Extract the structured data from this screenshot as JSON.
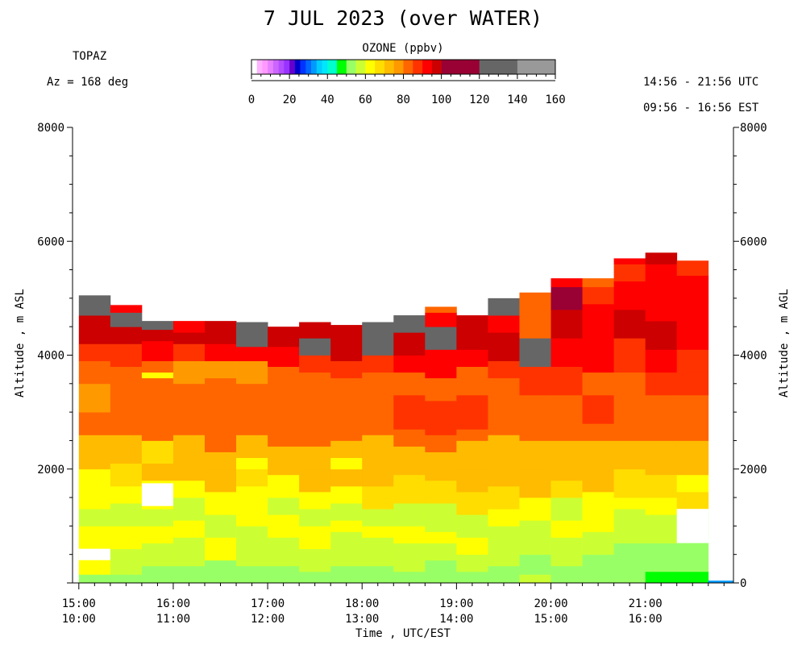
{
  "header": {
    "title": "7 JUL 2023 (over WATER)",
    "site": "TOPAZ",
    "azimuth": "Az = 168 deg",
    "utc_range": "14:56 - 21:56 UTC",
    "est_range": "09:56 - 16:56 EST"
  },
  "colorbar": {
    "label": "OZONE (ppbv)",
    "ticks": [
      "0",
      "20",
      "40",
      "60",
      "80",
      "100",
      "120",
      "140",
      "160"
    ],
    "colors": [
      "#ffffff",
      "#ffb3ff",
      "#ff99ff",
      "#e680ff",
      "#cc66ff",
      "#b34dff",
      "#9933ff",
      "#6600cc",
      "#0000cc",
      "#0033ff",
      "#0066ff",
      "#0099ff",
      "#00ccff",
      "#00e6ff",
      "#00ffcc",
      "#00ff00",
      "#99ff66",
      "#ccff33",
      "#ffff00",
      "#ffdd00",
      "#ffbb00",
      "#ff9900",
      "#ff6600",
      "#ff3300",
      "#ff0000",
      "#cc0000",
      "#990033",
      "#666666",
      "#999999",
      "#cccccc"
    ]
  },
  "chart_data": {
    "type": "heatmap",
    "title": "7 JUL 2023 (over WATER)",
    "variable": "OZONE (ppbv)",
    "xlabel": "Time , UTC/EST",
    "ylabel_left": "Altitude , m ASL",
    "ylabel_right": "Altitude , m AGL",
    "x_ticks_utc": [
      "15:00",
      "16:00",
      "17:00",
      "18:00",
      "19:00",
      "20:00",
      "21:00"
    ],
    "x_ticks_est": [
      "10:00",
      "11:00",
      "12:00",
      "13:00",
      "14:00",
      "15:00",
      "16:00"
    ],
    "y_ticks_left": [
      "8000",
      "6000",
      "4000",
      "2000"
    ],
    "y_ticks_right": [
      "8000",
      "6000",
      "4000",
      "2000",
      "0"
    ],
    "ylim": [
      0,
      8000
    ],
    "x_range_utc": [
      "14:56",
      "21:56"
    ],
    "profiles": [
      {
        "time": "15:00",
        "top": 5050,
        "gap": [
          400,
          600
        ],
        "layers": [
          [
            0,
            50
          ],
          [
            150,
            62
          ],
          [
            1000,
            55
          ],
          [
            1300,
            62
          ],
          [
            2000,
            72
          ],
          [
            2600,
            80
          ],
          [
            3000,
            78
          ],
          [
            3500,
            82
          ],
          [
            3900,
            88
          ],
          [
            4200,
            98
          ],
          [
            4700,
            104
          ],
          [
            4900,
            106
          ]
        ]
      },
      {
        "time": "15:20",
        "top": 4880,
        "layers": [
          [
            0,
            50
          ],
          [
            150,
            55
          ],
          [
            600,
            62
          ],
          [
            1000,
            55
          ],
          [
            1400,
            62
          ],
          [
            1700,
            68
          ],
          [
            2100,
            70
          ],
          [
            2600,
            80
          ],
          [
            3300,
            82
          ],
          [
            3800,
            88
          ],
          [
            4200,
            98
          ],
          [
            4500,
            102
          ],
          [
            4750,
            94
          ]
        ]
      },
      {
        "time": "15:40",
        "top": 4600,
        "gap": [
          1350,
          1750
        ],
        "layers": [
          [
            0,
            50
          ],
          [
            300,
            55
          ],
          [
            700,
            62
          ],
          [
            1000,
            55
          ],
          [
            1300,
            62
          ],
          [
            1800,
            70
          ],
          [
            2100,
            68
          ],
          [
            2500,
            80
          ],
          [
            3600,
            62
          ],
          [
            3700,
            82
          ],
          [
            3900,
            94
          ],
          [
            4250,
            98
          ],
          [
            4450,
            104
          ]
        ]
      },
      {
        "time": "16:00",
        "top": 4600,
        "layers": [
          [
            0,
            52
          ],
          [
            300,
            55
          ],
          [
            800,
            62
          ],
          [
            1100,
            55
          ],
          [
            1500,
            62
          ],
          [
            1800,
            70
          ],
          [
            2200,
            70
          ],
          [
            2600,
            80
          ],
          [
            3100,
            82
          ],
          [
            3500,
            78
          ],
          [
            3900,
            88
          ],
          [
            4200,
            96
          ],
          [
            4400,
            94
          ]
        ]
      },
      {
        "time": "16:20",
        "top": 4600,
        "layers": [
          [
            0,
            52
          ],
          [
            400,
            60
          ],
          [
            800,
            55
          ],
          [
            1200,
            62
          ],
          [
            1600,
            72
          ],
          [
            2000,
            70
          ],
          [
            2300,
            80
          ],
          [
            3100,
            82
          ],
          [
            3600,
            78
          ],
          [
            3900,
            90
          ],
          [
            4200,
            98
          ],
          [
            4450,
            96
          ]
        ]
      },
      {
        "time": "16:40",
        "top": 4580,
        "layers": [
          [
            0,
            50
          ],
          [
            300,
            58
          ],
          [
            700,
            55
          ],
          [
            1000,
            60
          ],
          [
            1300,
            62
          ],
          [
            1700,
            68
          ],
          [
            2000,
            60
          ],
          [
            2200,
            70
          ],
          [
            2600,
            80
          ],
          [
            3000,
            82
          ],
          [
            3500,
            78
          ],
          [
            3900,
            92
          ],
          [
            4150,
            104
          ]
        ]
      },
      {
        "time": "17:00",
        "top": 4500,
        "layers": [
          [
            0,
            50
          ],
          [
            300,
            55
          ],
          [
            800,
            62
          ],
          [
            1200,
            55
          ],
          [
            1500,
            62
          ],
          [
            1900,
            70
          ],
          [
            2400,
            80
          ],
          [
            3100,
            82
          ],
          [
            3500,
            80
          ],
          [
            3800,
            92
          ],
          [
            4150,
            98
          ],
          [
            4350,
            96
          ]
        ]
      },
      {
        "time": "17:20",
        "top": 4580,
        "layers": [
          [
            0,
            50
          ],
          [
            200,
            55
          ],
          [
            600,
            62
          ],
          [
            1000,
            55
          ],
          [
            1300,
            62
          ],
          [
            1600,
            72
          ],
          [
            2000,
            70
          ],
          [
            2400,
            80
          ],
          [
            3200,
            82
          ],
          [
            3700,
            88
          ],
          [
            4000,
            104
          ],
          [
            4300,
            96
          ]
        ]
      },
      {
        "time": "17:40",
        "top": 4530,
        "layers": [
          [
            0,
            50
          ],
          [
            300,
            55
          ],
          [
            900,
            62
          ],
          [
            1100,
            55
          ],
          [
            1400,
            62
          ],
          [
            1700,
            70
          ],
          [
            2000,
            62
          ],
          [
            2200,
            70
          ],
          [
            2500,
            80
          ],
          [
            3200,
            82
          ],
          [
            3600,
            88
          ],
          [
            3900,
            98
          ],
          [
            4250,
            98
          ]
        ]
      },
      {
        "time": "18:00",
        "top": 4580,
        "layers": [
          [
            0,
            50
          ],
          [
            300,
            55
          ],
          [
            800,
            62
          ],
          [
            1000,
            55
          ],
          [
            1300,
            66
          ],
          [
            1700,
            70
          ],
          [
            2200,
            72
          ],
          [
            2600,
            80
          ],
          [
            3100,
            84
          ],
          [
            3700,
            88
          ],
          [
            4000,
            104
          ],
          [
            4200,
            114
          ],
          [
            4280,
            102
          ]
        ]
      },
      {
        "time": "18:20",
        "top": 4700,
        "layers": [
          [
            0,
            50
          ],
          [
            200,
            55
          ],
          [
            700,
            60
          ],
          [
            1000,
            55
          ],
          [
            1400,
            66
          ],
          [
            1900,
            72
          ],
          [
            2400,
            80
          ],
          [
            2700,
            86
          ],
          [
            3300,
            82
          ],
          [
            3700,
            90
          ],
          [
            4000,
            98
          ],
          [
            4400,
            104
          ]
        ]
      },
      {
        "time": "18:40",
        "top": 4850,
        "layers": [
          [
            0,
            50
          ],
          [
            400,
            55
          ],
          [
            700,
            62
          ],
          [
            900,
            55
          ],
          [
            1400,
            66
          ],
          [
            1800,
            74
          ],
          [
            2300,
            80
          ],
          [
            2600,
            86
          ],
          [
            3200,
            82
          ],
          [
            3600,
            92
          ],
          [
            4100,
            112
          ],
          [
            4200,
            104
          ],
          [
            4500,
            94
          ],
          [
            4750,
            84
          ]
        ]
      },
      {
        "time": "19:00",
        "top": 4700,
        "layers": [
          [
            0,
            50
          ],
          [
            200,
            55
          ],
          [
            500,
            60
          ],
          [
            800,
            55
          ],
          [
            1200,
            66
          ],
          [
            1600,
            70
          ],
          [
            2000,
            72
          ],
          [
            2500,
            80
          ],
          [
            2700,
            86
          ],
          [
            3300,
            84
          ],
          [
            3800,
            92
          ],
          [
            4100,
            98
          ],
          [
            4400,
            96
          ]
        ]
      },
      {
        "time": "19:20",
        "top": 5000,
        "layers": [
          [
            0,
            50
          ],
          [
            300,
            55
          ],
          [
            1000,
            62
          ],
          [
            1300,
            66
          ],
          [
            1700,
            70
          ],
          [
            2200,
            72
          ],
          [
            2600,
            80
          ],
          [
            3200,
            82
          ],
          [
            3600,
            88
          ],
          [
            3900,
            96
          ],
          [
            4400,
            92
          ],
          [
            4700,
            104
          ]
        ]
      },
      {
        "time": "19:40",
        "top": 5100,
        "layers": [
          [
            0,
            58
          ],
          [
            150,
            52
          ],
          [
            500,
            55
          ],
          [
            1100,
            64
          ],
          [
            1500,
            70
          ],
          [
            2000,
            72
          ],
          [
            2500,
            82
          ],
          [
            2900,
            80
          ],
          [
            3300,
            86
          ],
          [
            3800,
            104
          ],
          [
            4300,
            82
          ],
          [
            4700,
            84
          ]
        ]
      },
      {
        "time": "20:00",
        "top": 5350,
        "layers": [
          [
            0,
            52
          ],
          [
            300,
            55
          ],
          [
            800,
            62
          ],
          [
            1100,
            55
          ],
          [
            1500,
            66
          ],
          [
            1800,
            74
          ],
          [
            2200,
            72
          ],
          [
            2500,
            84
          ],
          [
            2900,
            80
          ],
          [
            3300,
            88
          ],
          [
            3800,
            94
          ],
          [
            4300,
            96
          ],
          [
            4800,
            100
          ],
          [
            5200,
            94
          ]
        ]
      },
      {
        "time": "20:20",
        "top": 5350,
        "layers": [
          [
            0,
            52
          ],
          [
            500,
            55
          ],
          [
            900,
            62
          ],
          [
            1200,
            64
          ],
          [
            1600,
            70
          ],
          [
            2100,
            72
          ],
          [
            2500,
            80
          ],
          [
            2800,
            86
          ],
          [
            3300,
            84
          ],
          [
            3700,
            90
          ],
          [
            4100,
            94
          ],
          [
            4500,
            90
          ],
          [
            4900,
            88
          ],
          [
            5200,
            82
          ]
        ]
      },
      {
        "time": "20:40",
        "top": 5700,
        "layers": [
          [
            0,
            50
          ],
          [
            300,
            52
          ],
          [
            700,
            55
          ],
          [
            1300,
            62
          ],
          [
            1500,
            66
          ],
          [
            2000,
            72
          ],
          [
            2500,
            80
          ],
          [
            2800,
            84
          ],
          [
            3300,
            82
          ],
          [
            3700,
            88
          ],
          [
            4300,
            96
          ],
          [
            4800,
            90
          ],
          [
            5300,
            88
          ],
          [
            5600,
            94
          ]
        ]
      },
      {
        "time": "21:00",
        "top": 5800,
        "layers": [
          [
            0,
            48
          ],
          [
            200,
            52
          ],
          [
            700,
            55
          ],
          [
            1200,
            62
          ],
          [
            1500,
            66
          ],
          [
            1900,
            72
          ],
          [
            2500,
            80
          ],
          [
            2900,
            84
          ],
          [
            3300,
            86
          ],
          [
            3700,
            92
          ],
          [
            4100,
            96
          ],
          [
            4600,
            92
          ],
          [
            5200,
            94
          ],
          [
            5600,
            98
          ]
        ]
      },
      {
        "time": "21:20",
        "top": 5660,
        "gap": [
          700,
          1300
        ],
        "layers": [
          [
            0,
            48
          ],
          [
            200,
            52
          ],
          [
            1300,
            66
          ],
          [
            1600,
            62
          ],
          [
            1900,
            70
          ],
          [
            2500,
            80
          ],
          [
            2900,
            84
          ],
          [
            3300,
            86
          ],
          [
            3700,
            88
          ],
          [
            4100,
            94
          ],
          [
            4500,
            92
          ],
          [
            5000,
            90
          ],
          [
            5400,
            88
          ]
        ]
      }
    ]
  }
}
